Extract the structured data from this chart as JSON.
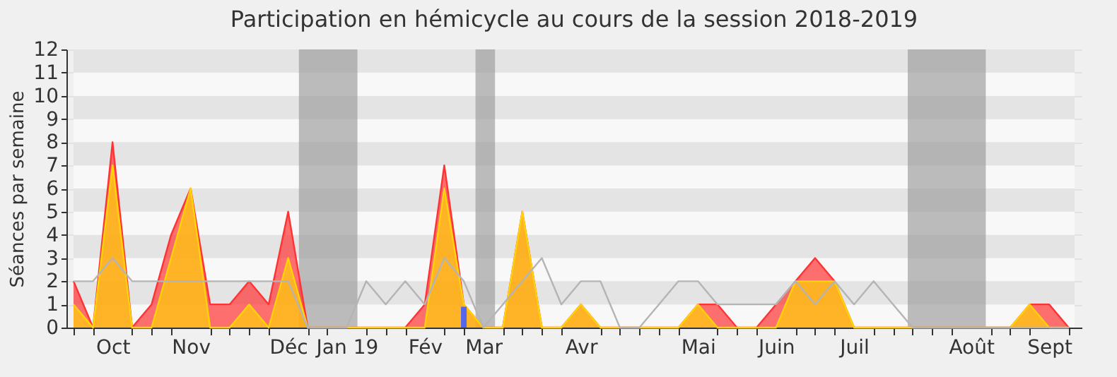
{
  "chart_data": {
    "type": "area",
    "title": "Participation en hémicycle au cours de la session 2018-2019",
    "ylabel": "Séances par semaine",
    "categories": [
      null,
      null,
      "Oct",
      null,
      null,
      null,
      "Nov",
      null,
      null,
      null,
      null,
      "Déc",
      null,
      null,
      "Jan 19",
      null,
      null,
      null,
      "Fév",
      null,
      null,
      "Mar",
      null,
      null,
      null,
      null,
      "Avr",
      null,
      null,
      null,
      null,
      null,
      "Mai",
      null,
      null,
      null,
      "Juin",
      null,
      null,
      null,
      "Juil",
      null,
      null,
      null,
      null,
      null,
      "Août",
      null,
      null,
      null,
      "Sept",
      null
    ],
    "series": [
      {
        "type": "line",
        "color": "#b4b4b4",
        "values": [
          2,
          2,
          3,
          2,
          2,
          2,
          2,
          2,
          2,
          2,
          2,
          2,
          0,
          0,
          0,
          2,
          1,
          2,
          1,
          3,
          2,
          0,
          1,
          2,
          3,
          1,
          2,
          2,
          0,
          0,
          1,
          2,
          2,
          1,
          1,
          1,
          1,
          2,
          1,
          2,
          1,
          2,
          1,
          0,
          0,
          0,
          0,
          0,
          0,
          0,
          0,
          0
        ]
      },
      {
        "color": "#ff3333",
        "values": [
          2,
          0,
          8,
          0,
          1,
          4,
          6,
          1,
          1,
          2,
          1,
          5,
          0,
          0,
          0,
          0,
          0,
          0,
          1,
          7,
          1,
          0,
          0,
          5,
          0,
          0,
          1,
          0,
          0,
          0,
          0,
          0,
          1,
          1,
          0,
          0,
          1,
          2,
          3,
          2,
          0,
          0,
          0,
          0,
          0,
          0,
          0,
          0,
          0,
          1,
          1,
          0
        ]
      },
      {
        "color": "#ffd20a",
        "values": [
          1,
          0,
          7,
          0,
          0,
          3,
          6,
          0,
          0,
          1,
          0,
          3,
          0,
          0,
          0,
          0,
          0,
          0,
          0,
          6,
          1,
          0,
          0,
          5,
          0,
          0,
          1,
          0,
          0,
          0,
          0,
          0,
          1,
          0,
          0,
          0,
          0,
          2,
          2,
          2,
          0,
          0,
          0,
          0,
          0,
          0,
          0,
          0,
          0,
          1,
          0,
          0
        ]
      },
      {
        "type": "bar",
        "color": "#5566ee",
        "values": [
          null,
          null,
          null,
          null,
          null,
          null,
          null,
          null,
          null,
          null,
          null,
          null,
          null,
          null,
          null,
          null,
          null,
          null,
          null,
          null,
          0.9,
          null,
          null,
          null,
          null,
          null,
          null,
          null,
          null,
          null,
          null,
          null,
          null,
          null,
          null,
          null,
          null,
          null,
          null,
          null,
          null,
          null,
          null,
          null,
          null,
          null,
          null,
          null,
          null,
          null,
          null,
          null
        ]
      }
    ],
    "ylim": [
      0,
      12
    ],
    "yticks": [
      0,
      1,
      2,
      3,
      4,
      5,
      6,
      7,
      8,
      9,
      10,
      11,
      12
    ],
    "grid": "y"
  }
}
